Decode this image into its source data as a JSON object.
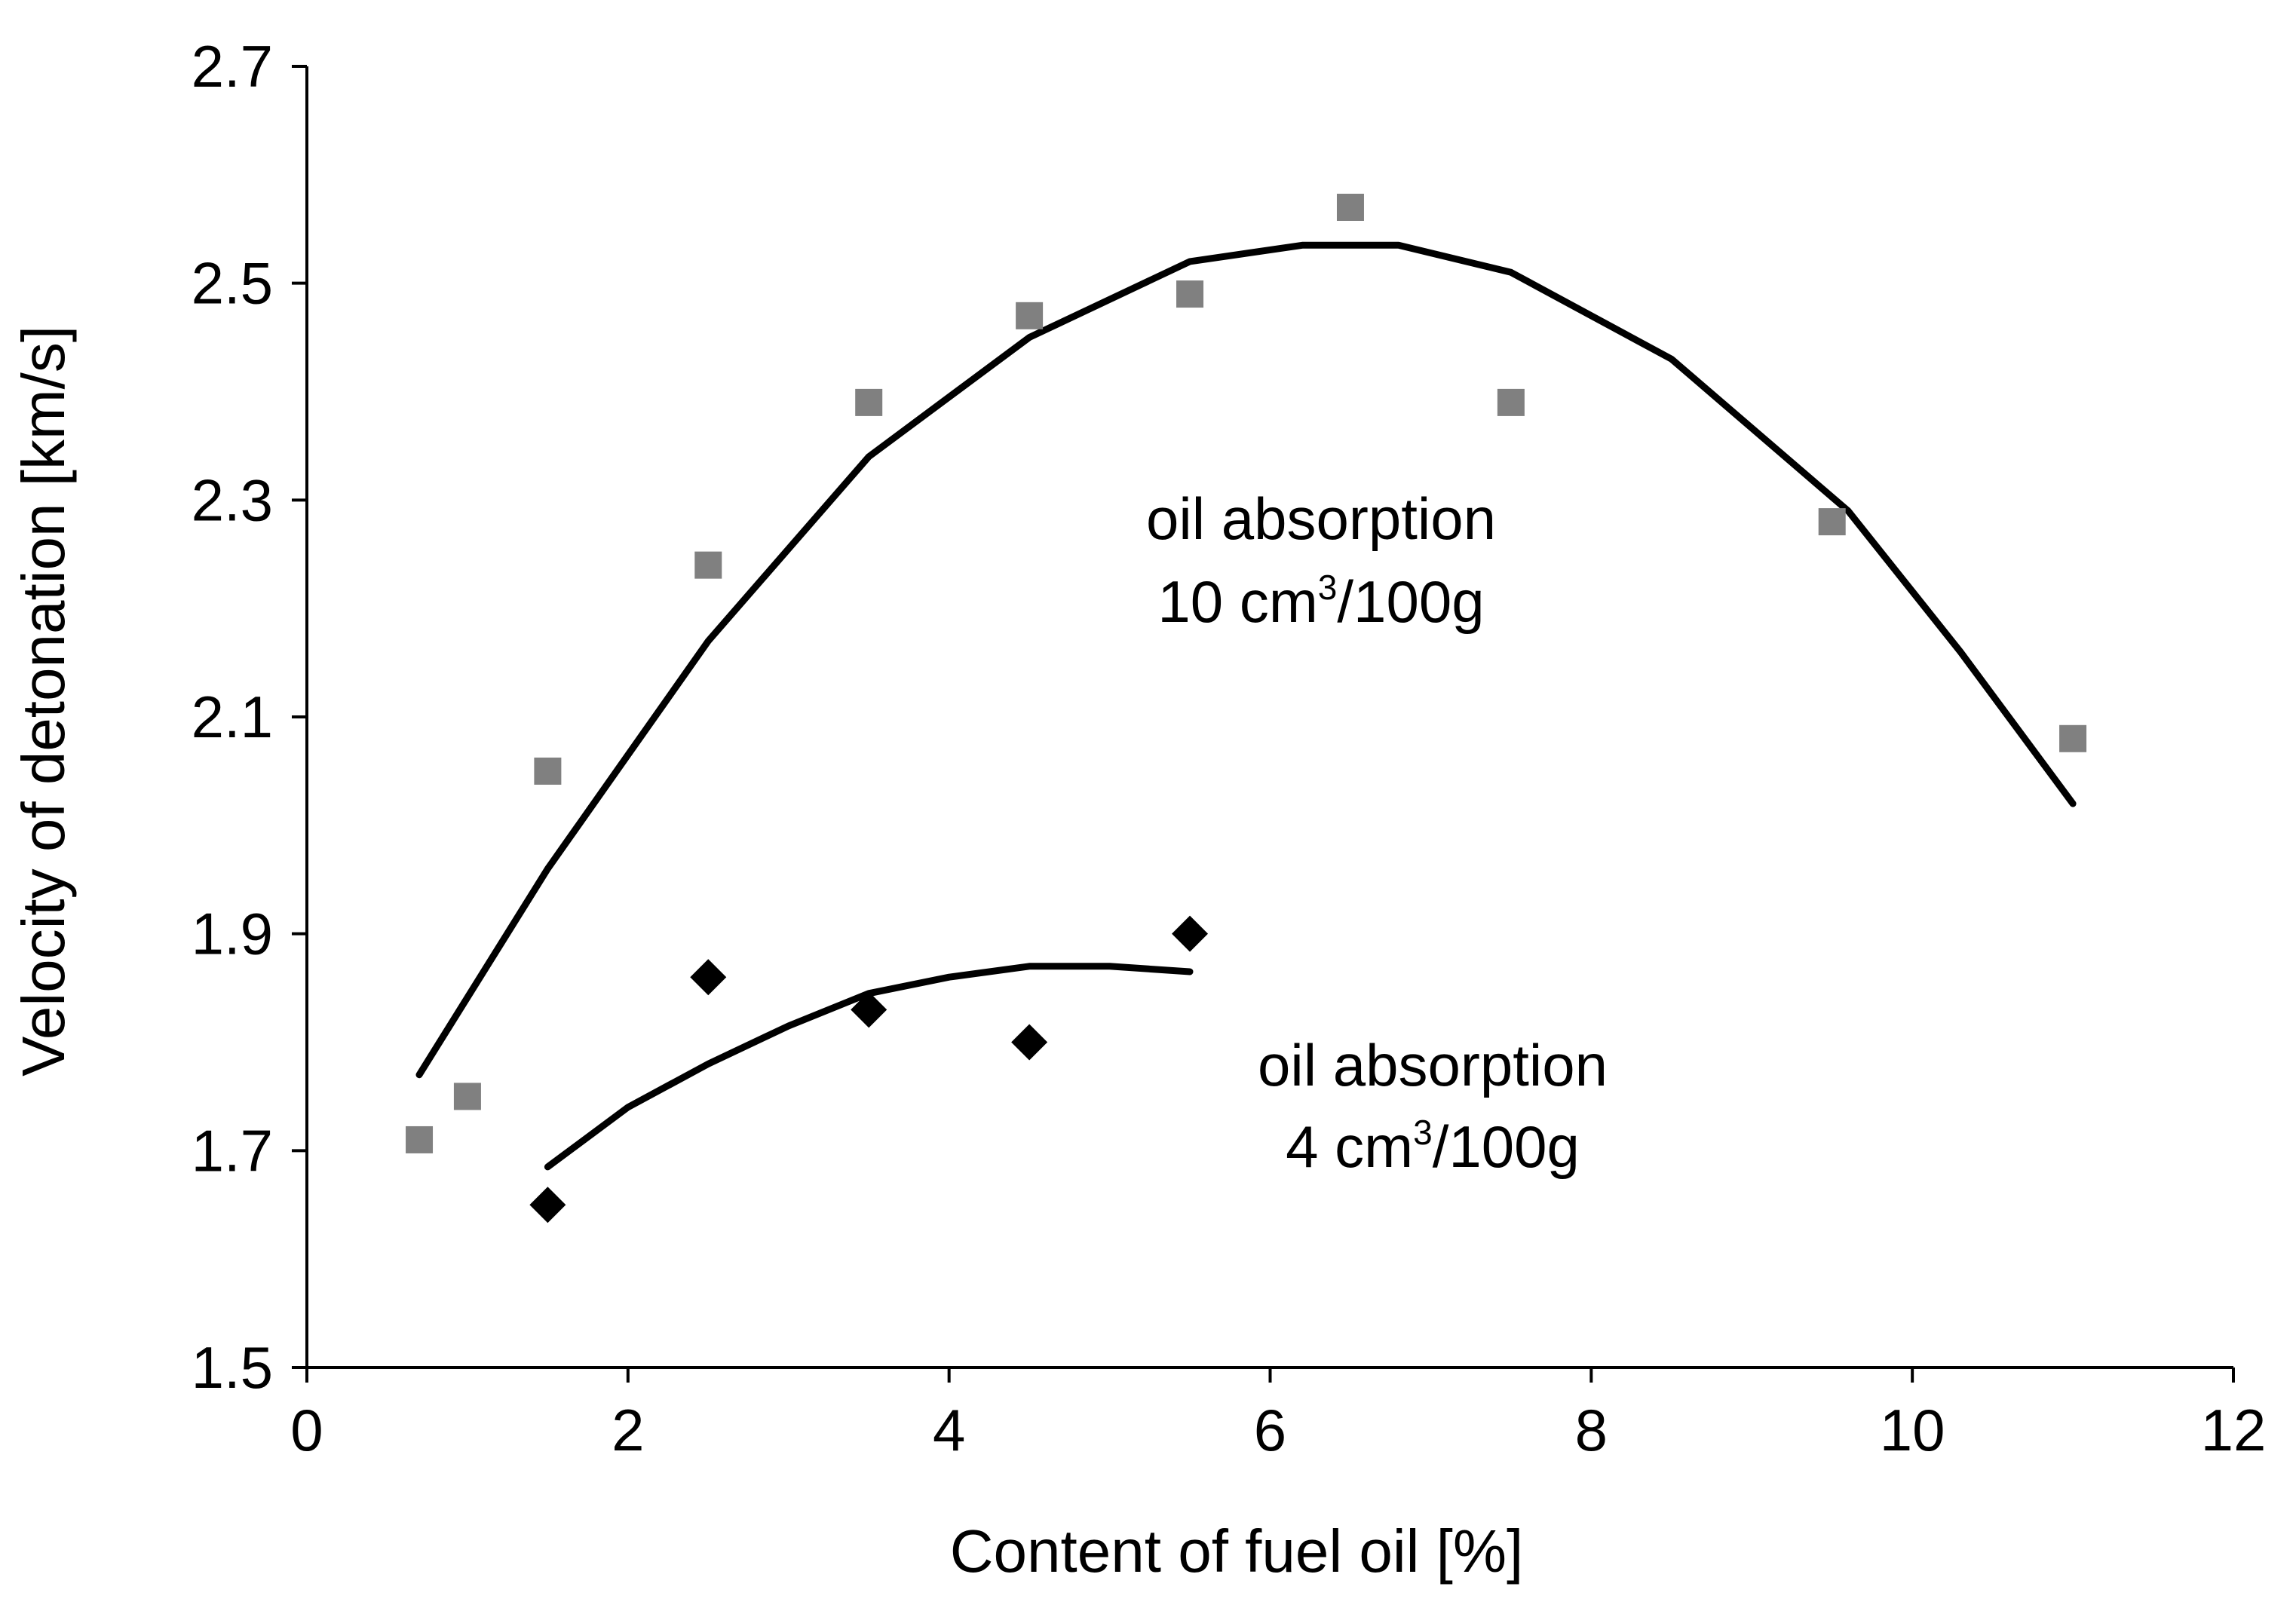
{
  "chart_data": {
    "type": "scatter",
    "title": "",
    "xlabel": "Content of fuel oil [%]",
    "ylabel": "Velocity of detonation [km/s]",
    "xlim": [
      0,
      12
    ],
    "ylim": [
      1.5,
      2.7
    ],
    "x_ticks": [
      "0",
      "2",
      "4",
      "6",
      "8",
      "10",
      "12"
    ],
    "y_ticks": [
      "1.5",
      "1.7",
      "1.9",
      "2.1",
      "2.3",
      "2.5",
      "2.7"
    ],
    "grid": false,
    "legend": "none",
    "series": [
      {
        "marker": "square",
        "color": "#808080",
        "points": [
          {
            "x": 0.7,
            "y": 1.71
          },
          {
            "x": 1.0,
            "y": 1.75
          },
          {
            "x": 1.5,
            "y": 2.05
          },
          {
            "x": 2.5,
            "y": 2.24
          },
          {
            "x": 3.5,
            "y": 2.39
          },
          {
            "x": 4.5,
            "y": 2.47
          },
          {
            "x": 5.5,
            "y": 2.49
          },
          {
            "x": 6.5,
            "y": 2.57
          },
          {
            "x": 7.5,
            "y": 2.39
          },
          {
            "x": 9.5,
            "y": 2.28
          },
          {
            "x": 11.0,
            "y": 2.08
          }
        ],
        "trendline": [
          {
            "x": 0.7,
            "y": 1.77
          },
          {
            "x": 1.5,
            "y": 1.96
          },
          {
            "x": 2.5,
            "y": 2.17
          },
          {
            "x": 3.5,
            "y": 2.34
          },
          {
            "x": 4.5,
            "y": 2.45
          },
          {
            "x": 5.5,
            "y": 2.52
          },
          {
            "x": 6.2,
            "y": 2.535
          },
          {
            "x": 6.8,
            "y": 2.535
          },
          {
            "x": 7.5,
            "y": 2.51
          },
          {
            "x": 8.5,
            "y": 2.43
          },
          {
            "x": 9.6,
            "y": 2.29
          },
          {
            "x": 10.3,
            "y": 2.16
          },
          {
            "x": 11.0,
            "y": 2.02
          }
        ],
        "annotation": {
          "line1": "oil absorption",
          "line2_main": "10 cm",
          "line2_sup": "3",
          "line2_tail": "/100g"
        }
      },
      {
        "marker": "diamond",
        "color": "#000000",
        "points": [
          {
            "x": 1.5,
            "y": 1.65
          },
          {
            "x": 2.5,
            "y": 1.86
          },
          {
            "x": 3.5,
            "y": 1.83
          },
          {
            "x": 4.5,
            "y": 1.8
          },
          {
            "x": 5.5,
            "y": 1.9
          }
        ],
        "trendline": [
          {
            "x": 1.5,
            "y": 1.685
          },
          {
            "x": 2.0,
            "y": 1.74
          },
          {
            "x": 2.5,
            "y": 1.78
          },
          {
            "x": 3.0,
            "y": 1.815
          },
          {
            "x": 3.5,
            "y": 1.845
          },
          {
            "x": 4.0,
            "y": 1.86
          },
          {
            "x": 4.5,
            "y": 1.87
          },
          {
            "x": 5.0,
            "y": 1.87
          },
          {
            "x": 5.5,
            "y": 1.865
          }
        ],
        "annotation": {
          "line1": "oil absorption",
          "line2_main": "4 cm",
          "line2_sup": "3",
          "line2_tail": "/100g"
        }
      }
    ]
  }
}
